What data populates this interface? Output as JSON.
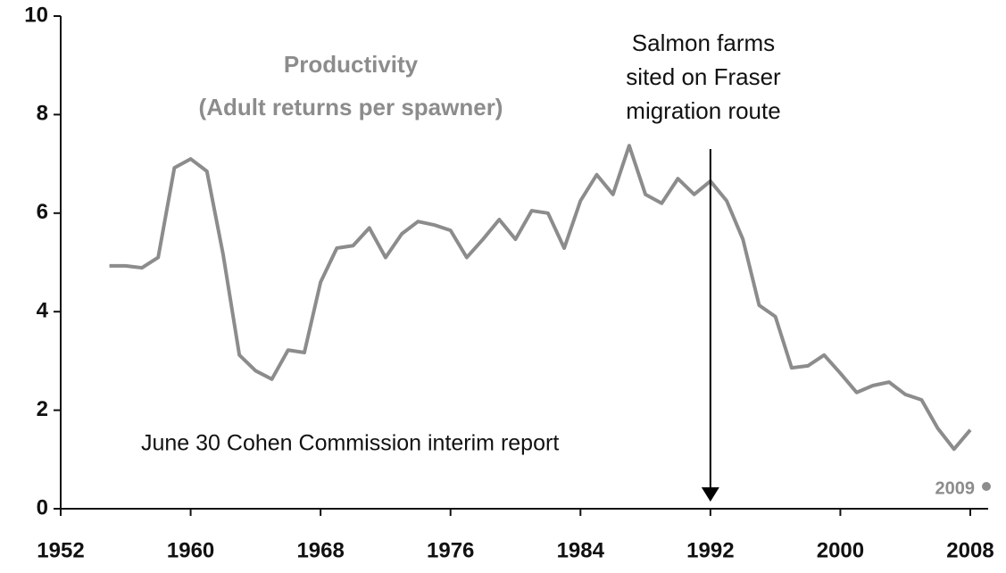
{
  "chart_data": {
    "type": "line",
    "title_lines": [
      "Productivity",
      "(Adult returns per spawner)"
    ],
    "annotation_lines": [
      "Salmon farms",
      "sited on Fraser",
      "migration route"
    ],
    "report_note": "June 30 Cohen Commission interim report",
    "corner_label": "2009",
    "arrow": {
      "x": 1992,
      "y_start": 7.3,
      "y_end": 0
    },
    "x": [
      1955,
      1956,
      1957,
      1958,
      1959,
      1960,
      1961,
      1962,
      1963,
      1964,
      1965,
      1966,
      1967,
      1968,
      1969,
      1970,
      1971,
      1972,
      1973,
      1974,
      1975,
      1976,
      1977,
      1978,
      1979,
      1980,
      1981,
      1982,
      1983,
      1984,
      1985,
      1986,
      1987,
      1988,
      1989,
      1990,
      1991,
      1992,
      1993,
      1994,
      1995,
      1996,
      1997,
      1998,
      1999,
      2000,
      2001,
      2002,
      2003,
      2004,
      2005,
      2006,
      2007,
      2008
    ],
    "series": [
      {
        "color": "#8c8c8c",
        "values": [
          4.93,
          4.93,
          4.89,
          5.1,
          6.92,
          7.1,
          6.85,
          5.16,
          3.12,
          2.8,
          2.63,
          3.22,
          3.17,
          4.6,
          5.29,
          5.34,
          5.7,
          5.1,
          5.58,
          5.83,
          5.76,
          5.65,
          5.1,
          5.47,
          5.87,
          5.47,
          6.05,
          6.0,
          5.29,
          6.25,
          6.78,
          6.38,
          7.37,
          6.38,
          6.2,
          6.7,
          6.38,
          6.65,
          6.25,
          5.47,
          4.13,
          3.9,
          2.86,
          2.9,
          3.12,
          2.75,
          2.36,
          2.5,
          2.57,
          2.32,
          2.21,
          1.63,
          1.21,
          1.6
        ]
      }
    ],
    "xlim": [
      1952,
      2008
    ],
    "xticks": [
      1952,
      1960,
      1968,
      1976,
      1984,
      1992,
      2000,
      2008
    ],
    "ylim": [
      0,
      10
    ],
    "yticks": [
      0,
      2,
      4,
      6,
      8,
      10
    ],
    "grid": false
  }
}
